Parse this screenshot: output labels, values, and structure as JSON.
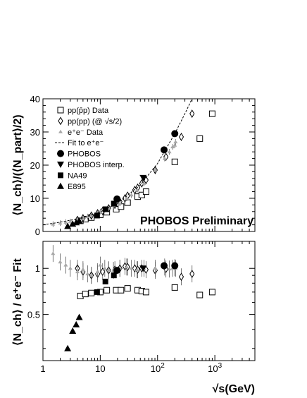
{
  "chart_data": [
    {
      "type": "scatter",
      "panel": "top",
      "ylabel": "⟨N_ch⟩/(⟨N_part⟩/2)",
      "ylim": [
        0,
        40
      ],
      "yticks": [
        "0",
        "10",
        "20",
        "30",
        "40"
      ],
      "xscale": "log",
      "xlim": [
        1,
        5000
      ],
      "annotation": "PHOBOS Preliminary",
      "legend_position": "top-left",
      "series": [
        {
          "name": "pp(p̄p) Data",
          "marker": "open-square",
          "x": [
            4.5,
            5.5,
            7,
            10,
            13,
            19,
            23,
            30,
            45,
            53,
            63,
            200,
            546,
            900
          ],
          "y": [
            3.2,
            3.7,
            4.2,
            5.0,
            5.8,
            6.7,
            7.5,
            8.7,
            10.5,
            11.0,
            12.0,
            21.0,
            28.0,
            35.5
          ]
        },
        {
          "name": "pp(pp) (@ √s/2)",
          "marker": "open-diamond",
          "x": [
            4,
            5,
            7,
            9,
            11,
            14,
            18,
            22,
            27,
            30,
            40,
            45,
            53,
            63,
            91,
            140,
            260,
            400
          ],
          "y": [
            3.5,
            4.0,
            4.8,
            5.5,
            6.2,
            7.0,
            8.0,
            9.0,
            10.0,
            10.8,
            12.5,
            13.2,
            14.5,
            15.5,
            18.5,
            22.5,
            28.5,
            35.5
          ]
        },
        {
          "name": "e⁺e⁻ Data",
          "marker": "grey-triangle",
          "x": [
            1.5,
            2,
            2.5,
            3,
            4,
            5,
            6,
            7,
            9,
            10,
            12,
            14,
            17,
            22,
            29,
            35,
            44,
            58,
            91,
            133,
            161,
            183,
            200,
            206
          ],
          "y": [
            2.2,
            2.5,
            2.8,
            3.0,
            3.5,
            4.0,
            4.5,
            5.0,
            5.5,
            6.0,
            6.5,
            7.0,
            7.8,
            8.5,
            10.0,
            11.0,
            12.5,
            14.5,
            18.5,
            22.0,
            24.0,
            25.5,
            26.0,
            27.0
          ]
        },
        {
          "name": "Fit to e⁺e⁻",
          "marker": "dashed-line",
          "x": [
            1,
            2,
            5,
            10,
            20,
            50,
            100,
            200,
            300,
            400
          ],
          "y": [
            2.0,
            2.8,
            4.1,
            5.9,
            8.5,
            14.0,
            20.5,
            29.5,
            35.5,
            40.0
          ]
        },
        {
          "name": "PHOBOS",
          "marker": "filled-circle",
          "x": [
            19.6,
            130,
            200
          ],
          "y": [
            9.8,
            24.6,
            29.5
          ]
        },
        {
          "name": "PHOBOS interp.",
          "marker": "filled-down-triangle",
          "x": [
            56
          ],
          "y": [
            16.2
          ]
        },
        {
          "name": "NA49",
          "marker": "filled-square",
          "x": [
            8.8,
            12.3,
            17.3
          ],
          "y": [
            4.8,
            6.7,
            8.4
          ]
        },
        {
          "name": "E895",
          "marker": "filled-triangle",
          "x": [
            2.7,
            3.3,
            3.8,
            4.3
          ],
          "y": [
            1.6,
            2.3,
            2.7,
            3.2
          ]
        }
      ]
    },
    {
      "type": "scatter",
      "panel": "bottom",
      "ylabel": "⟨N_ch⟩ / e⁺e⁻ Fit",
      "yscale": "log",
      "ylim": [
        0.25,
        1.5
      ],
      "yticks": [
        "0.5",
        "1"
      ],
      "xscale": "log",
      "xlim": [
        1,
        5000
      ],
      "xlabel": "√s(GeV)",
      "xticks": [
        "1",
        "10",
        "10²",
        "10³"
      ],
      "series": [
        {
          "name": "pp(p̄p) Data",
          "marker": "open-square",
          "x": [
            4.5,
            5.5,
            7,
            10,
            13,
            19,
            23,
            30,
            45,
            53,
            63,
            200,
            546,
            900
          ],
          "y": [
            0.66,
            0.68,
            0.69,
            0.7,
            0.72,
            0.72,
            0.72,
            0.74,
            0.72,
            0.71,
            0.7,
            0.75,
            0.67,
            0.7
          ]
        },
        {
          "name": "pp(pp) (@ √s/2)",
          "marker": "open-diamond",
          "x": [
            4,
            5,
            7,
            9,
            11,
            14,
            18,
            22,
            27,
            30,
            40,
            45,
            53,
            63,
            91,
            140,
            260,
            400
          ],
          "y": [
            1.0,
            0.95,
            0.9,
            0.92,
            0.95,
            0.97,
            0.98,
            1.0,
            1.03,
            1.02,
            1.0,
            0.98,
            1.0,
            0.98,
            0.97,
            0.99,
            0.88,
            0.92
          ]
        },
        {
          "name": "e⁺e⁻ Data",
          "marker": "grey-triangle",
          "x": [
            1.5,
            2,
            2.5,
            3,
            4,
            5,
            6,
            7,
            9,
            10,
            12,
            14,
            17,
            22,
            29,
            35,
            44,
            58,
            91,
            133,
            161,
            183,
            200,
            206
          ],
          "y": [
            1.25,
            1.1,
            1.05,
            1.0,
            0.95,
            0.98,
            0.92,
            0.9,
            0.95,
            1.05,
            1.0,
            0.98,
            0.97,
            1.0,
            1.02,
            1.0,
            0.98,
            1.0,
            1.0,
            1.02,
            0.99,
            1.0,
            1.01,
            1.0
          ]
        },
        {
          "name": "PHOBOS",
          "marker": "filled-circle",
          "x": [
            19.6,
            130,
            200
          ],
          "y": [
            0.97,
            1.04,
            1.04
          ]
        },
        {
          "name": "PHOBOS interp.",
          "marker": "filled-down-triangle",
          "x": [
            56
          ],
          "y": [
            1.0
          ]
        },
        {
          "name": "NA49",
          "marker": "filled-square",
          "x": [
            8.8,
            12.3,
            17.3
          ],
          "y": [
            0.7,
            0.82,
            0.9
          ]
        },
        {
          "name": "E895",
          "marker": "filled-triangle",
          "x": [
            2.7,
            3.3,
            3.8,
            4.3
          ],
          "y": [
            0.3,
            0.39,
            0.43,
            0.48
          ]
        }
      ]
    }
  ]
}
